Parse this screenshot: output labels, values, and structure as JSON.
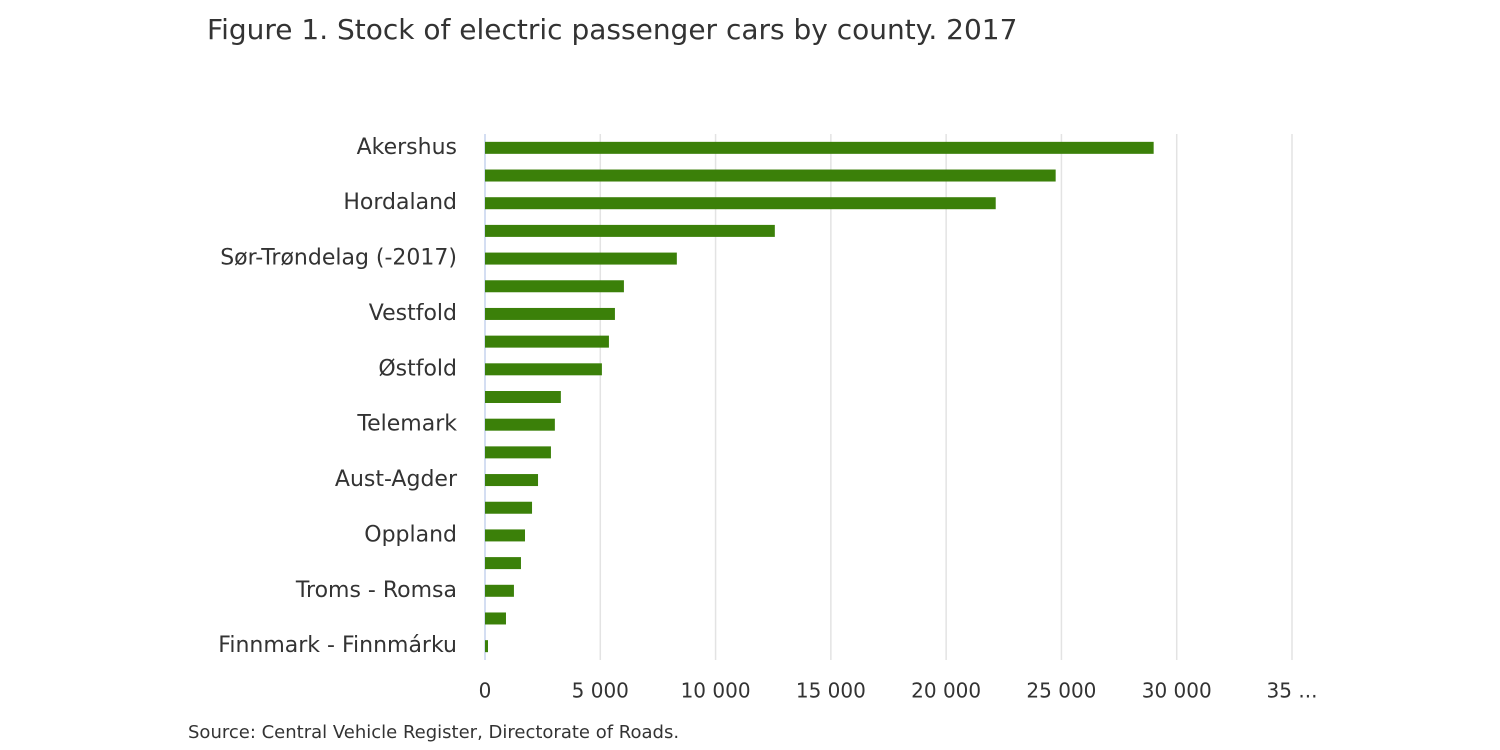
{
  "chart_data": {
    "type": "bar",
    "orientation": "horizontal",
    "title": "Figure 1. Stock of electric passenger cars by county. 2017",
    "source": "Source: Central Vehicle Register, Directorate of Roads.",
    "categories": [
      "Akershus",
      null,
      "Hordaland",
      null,
      "Sør-Trøndelag (-2017)",
      null,
      "Vestfold",
      null,
      "Østfold",
      null,
      "Telemark",
      null,
      "Aust-Agder",
      null,
      "Oppland",
      null,
      "Troms - Romsa",
      null,
      "Finnmark - Finnmárku"
    ],
    "values": [
      29000,
      24750,
      22150,
      12570,
      8320,
      6025,
      5635,
      5375,
      5070,
      3290,
      3030,
      2860,
      2300,
      2040,
      1735,
      1560,
      1255,
      910,
      130
    ],
    "color": "#3b8009",
    "xlim": [
      0,
      35000
    ],
    "xticks": [
      0,
      {
        "value": 5000,
        "label": "5 000"
      },
      {
        "value": 10000,
        "label": "10 000"
      },
      {
        "value": 15000,
        "label": "15 000"
      },
      {
        "value": 20000,
        "label": "20 000"
      },
      {
        "value": 25000,
        "label": "25 000"
      },
      {
        "value": 30000,
        "label": "30 000"
      },
      {
        "value": 35000,
        "label": "35 ..."
      }
    ],
    "grid": true
  }
}
